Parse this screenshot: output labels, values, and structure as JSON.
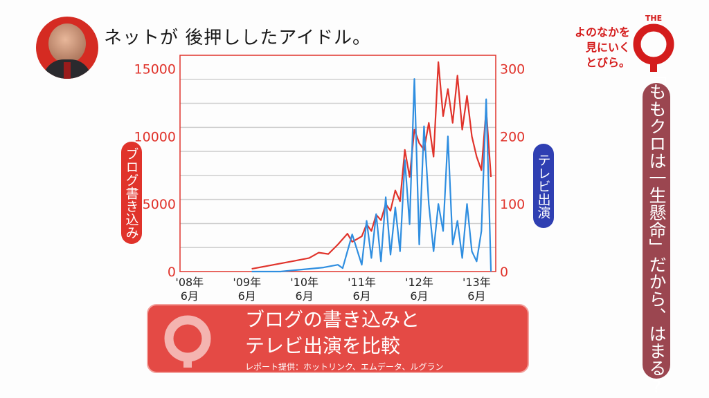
{
  "headline": "ネットが 後押ししたアイドル。",
  "show": {
    "tagline": [
      "よのなかを",
      "見にいく",
      "とびら。"
    ],
    "logo_word": "THE"
  },
  "side_caption": "「ももクロは一生懸命」だから、はまる?",
  "banner": {
    "title_lines": [
      "ブログの書き込みと",
      "テレビ出演を比較"
    ],
    "credit": "レポート提供：ホットリンク、エムデータ、ルグラン"
  },
  "colors": {
    "accent_red": "#e0332b",
    "series_blue": "#2f8ee0",
    "axis_blue": "#2f3fb2",
    "side_pill": "#9b4650"
  },
  "chart_data": {
    "type": "line",
    "xlabel": "",
    "grid": true,
    "x_range": [
      "2008-04",
      "2013-10"
    ],
    "x_ticks": [
      {
        "date": "2008-06",
        "label": [
          "'08年",
          "6月"
        ]
      },
      {
        "date": "2009-06",
        "label": [
          "'09年",
          "6月"
        ]
      },
      {
        "date": "2010-06",
        "label": [
          "'10年",
          "6月"
        ]
      },
      {
        "date": "2011-06",
        "label": [
          "'11年",
          "6月"
        ]
      },
      {
        "date": "2012-06",
        "label": [
          "'12年",
          "6月"
        ]
      },
      {
        "date": "2013-06",
        "label": [
          "'13年",
          "6月"
        ]
      }
    ],
    "y_left": {
      "label": "ブログ書き込み",
      "range": [
        0,
        16000
      ],
      "ticks": [
        "0",
        "5000",
        "10000",
        "15000"
      ],
      "tick_values": [
        0,
        5000,
        10000,
        15000
      ]
    },
    "y_right": {
      "label": "テレビ出演",
      "range": [
        0,
        320
      ],
      "ticks": [
        "0",
        "100",
        "200",
        "300"
      ],
      "tick_values": [
        0,
        100,
        200,
        300
      ]
    },
    "series": [
      {
        "name": "ブログ書き込み",
        "axis": "left",
        "color": "#e0332b",
        "x": [
          "2009-07",
          "2009-10",
          "2010-01",
          "2010-04",
          "2010-07",
          "2010-09",
          "2010-11",
          "2011-01",
          "2011-03",
          "2011-04",
          "2011-06",
          "2011-07",
          "2011-08",
          "2011-09",
          "2011-10",
          "2011-11",
          "2011-12",
          "2012-01",
          "2012-02",
          "2012-03",
          "2012-04",
          "2012-05",
          "2012-06",
          "2012-07",
          "2012-08",
          "2012-09",
          "2012-10",
          "2012-11",
          "2012-12",
          "2013-01",
          "2013-02",
          "2013-03",
          "2013-04",
          "2013-05",
          "2013-06",
          "2013-07",
          "2013-08",
          "2013-09"
        ],
        "y": [
          200,
          400,
          600,
          800,
          1000,
          1400,
          1300,
          2000,
          2800,
          2200,
          2600,
          3500,
          3000,
          4200,
          3800,
          5000,
          4500,
          6000,
          5200,
          9000,
          7000,
          10500,
          9500,
          9000,
          11000,
          8500,
          15500,
          11500,
          13500,
          11000,
          14500,
          10500,
          13000,
          10000,
          8500,
          7500,
          12000,
          7000
        ]
      },
      {
        "name": "テレビ出演",
        "axis": "right",
        "color": "#2f8ee0",
        "x": [
          "2009-07",
          "2010-01",
          "2010-04",
          "2010-07",
          "2010-10",
          "2011-01",
          "2011-02",
          "2011-04",
          "2011-06",
          "2011-07",
          "2011-08",
          "2011-09",
          "2011-10",
          "2011-11",
          "2011-12",
          "2012-01",
          "2012-02",
          "2012-03",
          "2012-04",
          "2012-05",
          "2012-06",
          "2012-07",
          "2012-08",
          "2012-09",
          "2012-10",
          "2012-11",
          "2012-12",
          "2013-01",
          "2013-02",
          "2013-03",
          "2013-04",
          "2013-05",
          "2013-06",
          "2013-07",
          "2013-08",
          "2013-09"
        ],
        "y": [
          0,
          0,
          2,
          4,
          6,
          10,
          5,
          55,
          10,
          75,
          20,
          85,
          15,
          110,
          25,
          95,
          30,
          165,
          70,
          285,
          40,
          215,
          100,
          30,
          100,
          60,
          200,
          40,
          75,
          20,
          100,
          30,
          15,
          60,
          255,
          0
        ]
      }
    ]
  }
}
